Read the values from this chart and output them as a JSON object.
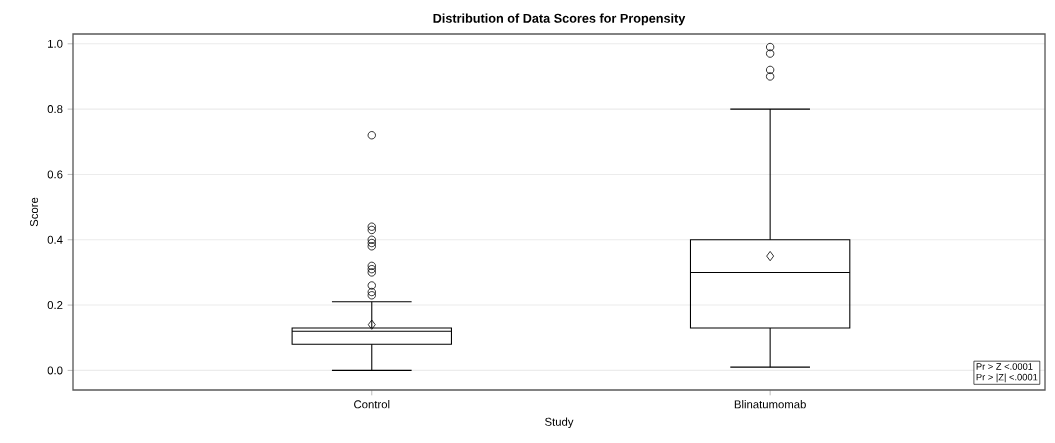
{
  "chart_data": {
    "type": "box",
    "title": "Distribution of Data Scores for Propensity",
    "xlabel": "Study",
    "ylabel": "Score",
    "categories": [
      "Control",
      "Blinatumomab"
    ],
    "boxes": [
      {
        "low": 0.0,
        "q1": 0.08,
        "median": 0.12,
        "q3": 0.13,
        "high": 0.21,
        "mean": 0.14,
        "outliers": [
          0.72,
          0.44,
          0.43,
          0.4,
          0.39,
          0.38,
          0.32,
          0.31,
          0.3,
          0.26,
          0.24,
          0.23
        ]
      },
      {
        "low": 0.01,
        "q1": 0.13,
        "median": 0.3,
        "q3": 0.4,
        "high": 0.8,
        "mean": 0.35,
        "outliers": [
          0.99,
          0.97,
          0.92,
          0.9
        ]
      }
    ],
    "ylim": [
      -0.06,
      1.03
    ],
    "yticks": [
      {
        "value": 0,
        "label": "0.0"
      },
      {
        "value": 0.2,
        "label": "0.2"
      },
      {
        "value": 0.4,
        "label": "0.4"
      },
      {
        "value": 0.6,
        "label": "0.6"
      },
      {
        "value": 0.8,
        "label": "0.8"
      },
      {
        "value": 1,
        "label": "1.0"
      }
    ],
    "grid": "y",
    "annotations": [
      "Pr > Z    <.0001",
      "Pr > |Z|  <.0001"
    ]
  }
}
